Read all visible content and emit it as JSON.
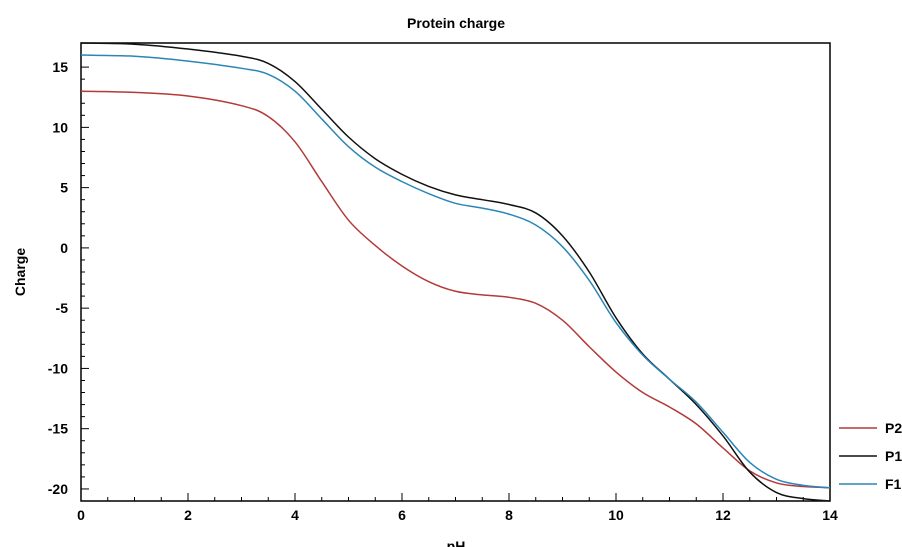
{
  "chart_data": {
    "type": "line",
    "title": "Protein charge",
    "xlabel": "pH",
    "ylabel": "Charge",
    "xlim": [
      0,
      14
    ],
    "ylim": [
      -21,
      17
    ],
    "x_ticks": [
      0,
      2,
      4,
      6,
      8,
      10,
      12,
      14
    ],
    "y_ticks": [
      -20,
      -15,
      -10,
      -5,
      0,
      5,
      10,
      15
    ],
    "grid": false,
    "legend_position": "right",
    "series": [
      {
        "name": "P2",
        "color": "#b33a3a",
        "points": [
          [
            0,
            13
          ],
          [
            1,
            12.9
          ],
          [
            2,
            12.6
          ],
          [
            3,
            11.8
          ],
          [
            3.5,
            10.9
          ],
          [
            4,
            8.8
          ],
          [
            4.5,
            5.5
          ],
          [
            5,
            2.3
          ],
          [
            5.5,
            0.2
          ],
          [
            6,
            -1.5
          ],
          [
            6.5,
            -2.8
          ],
          [
            7,
            -3.6
          ],
          [
            7.5,
            -3.9
          ],
          [
            8,
            -4.1
          ],
          [
            8.5,
            -4.6
          ],
          [
            9,
            -6.0
          ],
          [
            9.5,
            -8.2
          ],
          [
            10,
            -10.3
          ],
          [
            10.5,
            -12.0
          ],
          [
            11,
            -13.2
          ],
          [
            11.5,
            -14.6
          ],
          [
            12,
            -16.6
          ],
          [
            12.5,
            -18.5
          ],
          [
            13,
            -19.5
          ],
          [
            13.5,
            -19.8
          ],
          [
            14,
            -19.9
          ]
        ]
      },
      {
        "name": "P1",
        "color": "#111111",
        "points": [
          [
            0,
            17
          ],
          [
            1,
            16.9
          ],
          [
            2,
            16.5
          ],
          [
            3,
            15.9
          ],
          [
            3.5,
            15.3
          ],
          [
            4,
            13.8
          ],
          [
            4.5,
            11.5
          ],
          [
            5,
            9.2
          ],
          [
            5.5,
            7.4
          ],
          [
            6,
            6.1
          ],
          [
            6.5,
            5.1
          ],
          [
            7,
            4.4
          ],
          [
            7.5,
            4.0
          ],
          [
            8,
            3.6
          ],
          [
            8.5,
            2.9
          ],
          [
            9,
            1.0
          ],
          [
            9.5,
            -2.0
          ],
          [
            10,
            -5.8
          ],
          [
            10.5,
            -8.8
          ],
          [
            11,
            -10.9
          ],
          [
            11.5,
            -13.0
          ],
          [
            12,
            -15.6
          ],
          [
            12.5,
            -18.6
          ],
          [
            13,
            -20.3
          ],
          [
            13.5,
            -20.8
          ],
          [
            14,
            -21
          ]
        ]
      },
      {
        "name": "F1",
        "color": "#2a86b8",
        "points": [
          [
            0,
            16
          ],
          [
            1,
            15.9
          ],
          [
            2,
            15.5
          ],
          [
            3,
            14.9
          ],
          [
            3.5,
            14.4
          ],
          [
            4,
            13.0
          ],
          [
            4.5,
            10.7
          ],
          [
            5,
            8.4
          ],
          [
            5.5,
            6.7
          ],
          [
            6,
            5.5
          ],
          [
            6.5,
            4.5
          ],
          [
            7,
            3.7
          ],
          [
            7.5,
            3.3
          ],
          [
            8,
            2.8
          ],
          [
            8.5,
            1.9
          ],
          [
            9,
            0.1
          ],
          [
            9.5,
            -2.7
          ],
          [
            10,
            -6.2
          ],
          [
            10.5,
            -8.9
          ],
          [
            11,
            -10.9
          ],
          [
            11.5,
            -12.8
          ],
          [
            12,
            -15.3
          ],
          [
            12.5,
            -17.8
          ],
          [
            13,
            -19.2
          ],
          [
            13.5,
            -19.7
          ],
          [
            14,
            -19.9
          ]
        ]
      }
    ]
  }
}
